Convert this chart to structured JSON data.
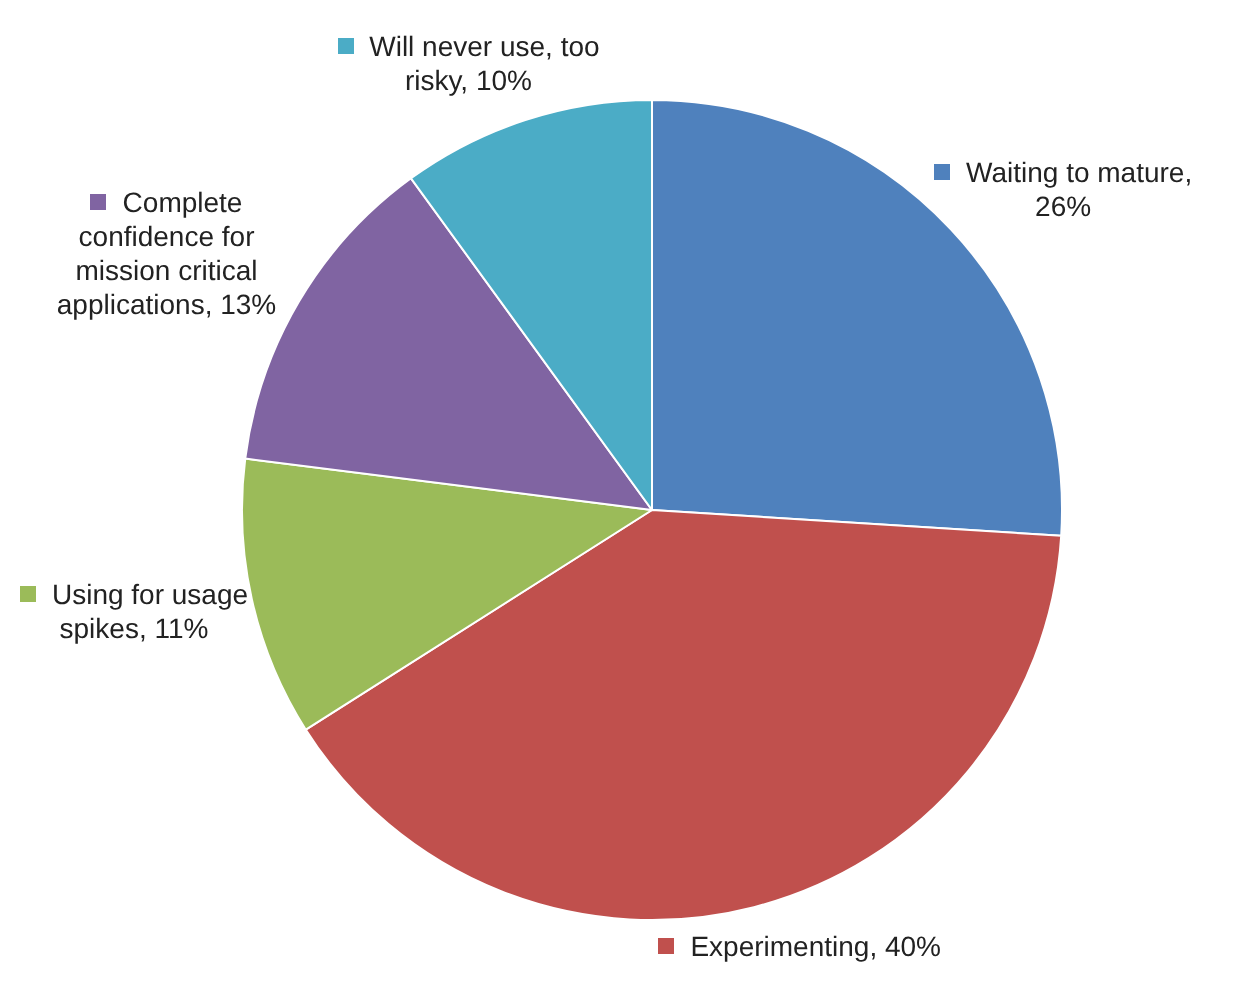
{
  "chart_data": {
    "type": "pie",
    "categories": [
      "Waiting to mature, 26%",
      "Experimenting, 40%",
      "Using for usage spikes, 11%",
      "Complete confidence for mission critical applications, 13%",
      "Will never use, too risky, 10%"
    ],
    "values": [
      26,
      40,
      11,
      13,
      10
    ],
    "colors": [
      "#4f81bd",
      "#c0504d",
      "#9bbb59",
      "#8064a2",
      "#4bacc6"
    ],
    "legend": true
  }
}
